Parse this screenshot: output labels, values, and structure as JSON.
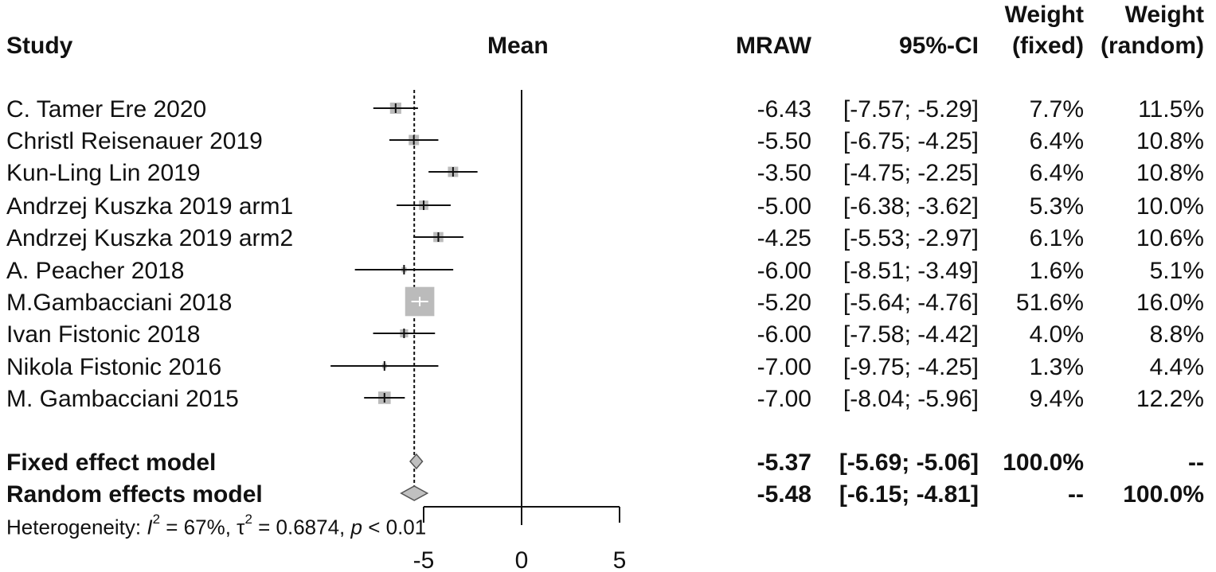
{
  "header": {
    "study": "Study",
    "mean": "Mean",
    "mraw": "MRAW",
    "ci": "95%-CI",
    "weight_fixed_line1": "Weight",
    "weight_fixed_line2": "(fixed)",
    "weight_random_line1": "Weight",
    "weight_random_line2": "(random)"
  },
  "studies": [
    {
      "name": "C. Tamer Ere 2020",
      "mraw": "-6.43",
      "ci": "[-7.57; -5.29]",
      "w_fixed": "7.7%",
      "w_random": "11.5%"
    },
    {
      "name": "Christl Reisenauer 2019",
      "mraw": "-5.50",
      "ci": "[-6.75; -4.25]",
      "w_fixed": "6.4%",
      "w_random": "10.8%"
    },
    {
      "name": "Kun-Ling Lin 2019",
      "mraw": "-3.50",
      "ci": "[-4.75; -2.25]",
      "w_fixed": "6.4%",
      "w_random": "10.8%"
    },
    {
      "name": "Andrzej Kuszka 2019 arm1",
      "mraw": "-5.00",
      "ci": "[-6.38; -3.62]",
      "w_fixed": "5.3%",
      "w_random": "10.0%"
    },
    {
      "name": "Andrzej Kuszka 2019 arm2",
      "mraw": "-4.25",
      "ci": "[-5.53; -2.97]",
      "w_fixed": "6.1%",
      "w_random": "10.6%"
    },
    {
      "name": "A. Peacher 2018",
      "mraw": "-6.00",
      "ci": "[-8.51; -3.49]",
      "w_fixed": "1.6%",
      "w_random": "5.1%"
    },
    {
      "name": "M.Gambacciani 2018",
      "mraw": "-5.20",
      "ci": "[-5.64; -4.76]",
      "w_fixed": "51.6%",
      "w_random": "16.0%"
    },
    {
      "name": "Ivan Fistonic 2018",
      "mraw": "-6.00",
      "ci": "[-7.58; -4.42]",
      "w_fixed": "4.0%",
      "w_random": "8.8%"
    },
    {
      "name": "Nikola Fistonic 2016",
      "mraw": "-7.00",
      "ci": "[-9.75; -4.25]",
      "w_fixed": "1.3%",
      "w_random": "4.4%"
    },
    {
      "name": "M. Gambacciani 2015",
      "mraw": "-7.00",
      "ci": "[-8.04; -5.96]",
      "w_fixed": "9.4%",
      "w_random": "12.2%"
    }
  ],
  "models": [
    {
      "name": "Fixed effect model",
      "mraw": "-5.37",
      "ci": "[-5.69; -5.06]",
      "w_fixed": "100.0%",
      "w_random": "--"
    },
    {
      "name": "Random effects model",
      "mraw": "-5.48",
      "ci": "[-6.15; -4.81]",
      "w_fixed": "--",
      "w_random": "100.0%"
    }
  ],
  "heterogeneity": {
    "prefix": "Heterogeneity: ",
    "i_symbol": "I",
    "i_exp": "2",
    "i_value": " = 67%, ",
    "tau_symbol": "τ",
    "tau_exp": "2",
    "tau_value": " = 0.6874, ",
    "p_symbol": "p",
    "p_value": " < 0.01"
  },
  "chart_data": {
    "type": "forest",
    "xlim": [
      -5,
      5
    ],
    "xticks": [
      -5,
      0,
      5
    ],
    "null_line": 0,
    "reference_line": -5.48,
    "colors": {
      "box": "#bbbbbb",
      "diamond": "#c0c0c0",
      "line": "#111111"
    },
    "points": [
      {
        "label": "C. Tamer Ere 2020",
        "mean": -6.43,
        "lower": -7.57,
        "upper": -5.29,
        "weight": 7.7
      },
      {
        "label": "Christl Reisenauer 2019",
        "mean": -5.5,
        "lower": -6.75,
        "upper": -4.25,
        "weight": 6.4
      },
      {
        "label": "Kun-Ling Lin 2019",
        "mean": -3.5,
        "lower": -4.75,
        "upper": -2.25,
        "weight": 6.4
      },
      {
        "label": "Andrzej Kuszka 2019 arm1",
        "mean": -5.0,
        "lower": -6.38,
        "upper": -3.62,
        "weight": 5.3
      },
      {
        "label": "Andrzej Kuszka 2019 arm2",
        "mean": -4.25,
        "lower": -5.53,
        "upper": -2.97,
        "weight": 6.1
      },
      {
        "label": "A. Peacher 2018",
        "mean": -6.0,
        "lower": -8.51,
        "upper": -3.49,
        "weight": 1.6
      },
      {
        "label": "M.Gambacciani 2018",
        "mean": -5.2,
        "lower": -5.64,
        "upper": -4.76,
        "weight": 51.6
      },
      {
        "label": "Ivan Fistonic 2018",
        "mean": -6.0,
        "lower": -7.58,
        "upper": -4.42,
        "weight": 4.0
      },
      {
        "label": "Nikola Fistonic 2016",
        "mean": -7.0,
        "lower": -9.75,
        "upper": -4.25,
        "weight": 1.3
      },
      {
        "label": "M. Gambacciani 2015",
        "mean": -7.0,
        "lower": -8.04,
        "upper": -5.96,
        "weight": 9.4
      }
    ],
    "summaries": [
      {
        "label": "Fixed effect model",
        "mean": -5.37,
        "lower": -5.69,
        "upper": -5.06
      },
      {
        "label": "Random effects model",
        "mean": -5.48,
        "lower": -6.15,
        "upper": -4.81
      }
    ]
  }
}
